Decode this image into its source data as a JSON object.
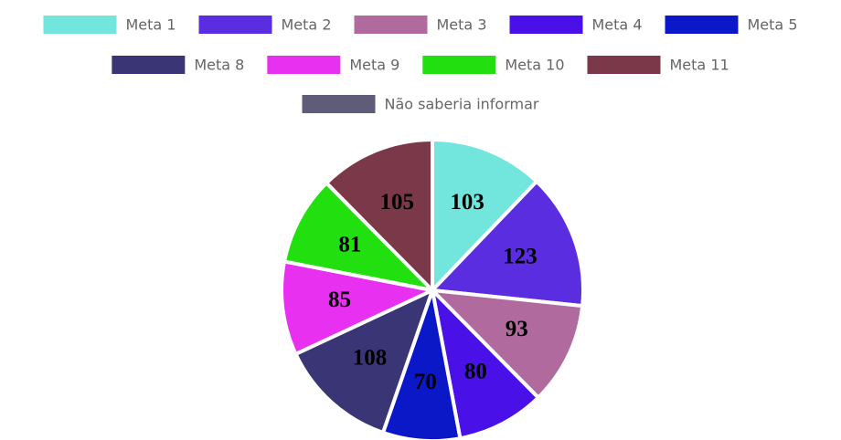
{
  "chart_data": {
    "type": "pie",
    "categories": [
      "Meta 1",
      "Meta 2",
      "Meta 3",
      "Meta 4",
      "Meta 5",
      "Meta 8",
      "Meta 9",
      "Meta 10",
      "Meta 11",
      "Não saberia informar"
    ],
    "values": [
      103,
      123,
      93,
      80,
      70,
      108,
      85,
      81,
      105,
      0
    ],
    "colors": [
      "#72e6dc",
      "#5a2ee0",
      "#b06a9e",
      "#4a10e8",
      "#0a18c8",
      "#3a3575",
      "#e830f0",
      "#22e010",
      "#7a3848",
      "#5e5c78"
    ]
  }
}
